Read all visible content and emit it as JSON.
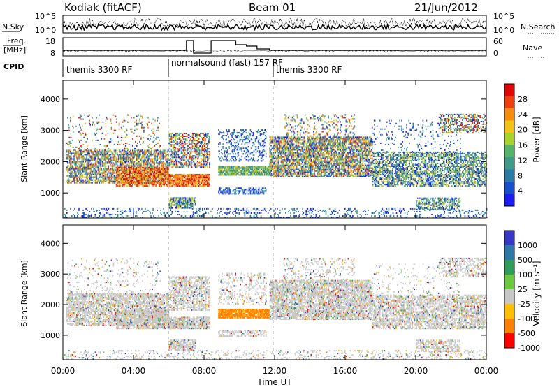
{
  "header": {
    "station": "Kodiak (fitACF)",
    "beam": "Beam 01",
    "date": "21/Jun/2012"
  },
  "top_panel": {
    "left_label": "N.Sky",
    "right_label": "N.Search",
    "left_ticks": [
      "10^5",
      "10^0"
    ],
    "right_ticks": [
      "10^5",
      "10^0"
    ],
    "freq_label_1": "Freq.",
    "freq_label_2": "[MHz]",
    "freq_ticks": [
      "18",
      "8"
    ],
    "nave_label": "Nave",
    "nave_ticks": [
      "60",
      "0"
    ],
    "cpid_label": "CPID",
    "cpid_segments": [
      "themis 3300 RF",
      "normalsound (fast) 157 RF",
      "themis 3300 RF"
    ]
  },
  "chart_data": [
    {
      "type": "heatmap",
      "quantity": "power",
      "ylabel": "Slant Range [km]",
      "ylim": [
        200,
        4600
      ],
      "yticks": [
        1000,
        2000,
        3000,
        4000
      ],
      "xlim": [
        "00:00",
        "24:00"
      ],
      "colorbar_label": "Power [dB]",
      "colorbar_ticks": [
        "4",
        "8",
        "12",
        "16",
        "20",
        "24",
        "28"
      ],
      "colorscale": [
        "#1c1cf0",
        "#1a4fcb",
        "#2a7ca6",
        "#3f9a8a",
        "#55b36a",
        "#a9d22a",
        "#f2c417",
        "#f58c0e",
        "#ee3e0b",
        "#e00606"
      ]
    },
    {
      "type": "heatmap",
      "quantity": "velocity",
      "ylabel": "Slant Range [km]",
      "ylim": [
        200,
        4600
      ],
      "yticks": [
        1000,
        2000,
        3000,
        4000
      ],
      "xlim": [
        "00:00",
        "24:00"
      ],
      "xlabel": "Time UT",
      "xticks": [
        "00:00",
        "04:00",
        "08:00",
        "12:00",
        "16:00",
        "20:00",
        "00:00"
      ],
      "colorbar_label": "Velocity [m s⁻¹]",
      "colorbar_ticks": [
        "1000",
        "500",
        "100",
        "25",
        "-25",
        "-100",
        "-500",
        "-1000"
      ],
      "colorscale": [
        "#3838c8",
        "#2e78a8",
        "#2e9c5a",
        "#6cc83c",
        "#c8c8c8",
        "#ffc000",
        "#ff8000",
        "#ff0000"
      ]
    }
  ]
}
